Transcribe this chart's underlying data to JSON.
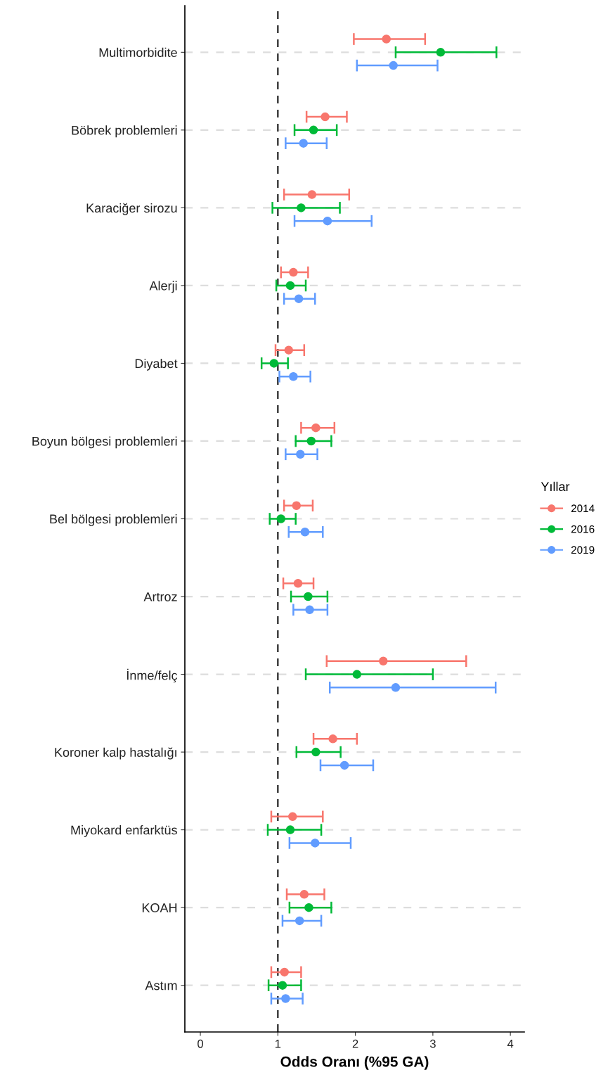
{
  "chart_data": {
    "type": "scatter",
    "orientation": "horizontal",
    "xlabel": "Odds Oranı (%95 GA)",
    "legend_title": "Yıllar",
    "legend": "right",
    "grid": "y",
    "marker": "circle",
    "categories": [
      "Multimorbidite",
      "Böbrek problemleri",
      "Karaciğer sirozu",
      "Alerji",
      "Diyabet",
      "Boyun bölgesi problemleri",
      "Bel bölgesi problemleri",
      "Artroz",
      "İnme/felç",
      "Koroner kalp hastalığı",
      "Miyokard enfarktüs",
      "KOAH",
      "Astım"
    ],
    "xlim": [
      -0.2,
      4.18
    ],
    "xticks": [
      0,
      1,
      2,
      3,
      4
    ],
    "ref_lines": [
      {
        "axis": "x",
        "value": 1,
        "color": "#222222",
        "line_style": "dashed"
      }
    ],
    "series": [
      {
        "name": "2014",
        "color": "#f8766d",
        "values": [
          2.4,
          1.61,
          1.44,
          1.2,
          1.14,
          1.49,
          1.24,
          1.26,
          2.36,
          1.71,
          1.19,
          1.34,
          1.085
        ],
        "errors": [
          [
            1.98,
            2.9
          ],
          [
            1.37,
            1.89
          ],
          [
            1.08,
            1.92
          ],
          [
            1.04,
            1.39
          ],
          [
            0.97,
            1.34
          ],
          [
            1.3,
            1.73
          ],
          [
            1.08,
            1.45
          ],
          [
            1.07,
            1.46
          ],
          [
            1.63,
            3.43
          ],
          [
            1.46,
            2.02
          ],
          [
            0.915,
            1.58
          ],
          [
            1.115,
            1.6
          ],
          [
            0.915,
            1.3
          ]
        ]
      },
      {
        "name": "2016",
        "color": "#00ba38",
        "values": [
          3.1,
          1.46,
          1.3,
          1.16,
          0.95,
          1.43,
          1.04,
          1.39,
          2.02,
          1.49,
          1.16,
          1.4,
          1.06
        ],
        "errors": [
          [
            2.52,
            3.82
          ],
          [
            1.215,
            1.76
          ],
          [
            0.93,
            1.8
          ],
          [
            0.98,
            1.36
          ],
          [
            0.79,
            1.13
          ],
          [
            1.23,
            1.69
          ],
          [
            0.895,
            1.23
          ],
          [
            1.17,
            1.64
          ],
          [
            1.36,
            3.0
          ],
          [
            1.24,
            1.81
          ],
          [
            0.87,
            1.56
          ],
          [
            1.15,
            1.69
          ],
          [
            0.88,
            1.3
          ]
        ]
      },
      {
        "name": "2019",
        "color": "#619cff",
        "values": [
          2.49,
          1.33,
          1.64,
          1.27,
          1.2,
          1.29,
          1.35,
          1.41,
          2.52,
          1.86,
          1.48,
          1.28,
          1.1
        ],
        "errors": [
          [
            2.02,
            3.06
          ],
          [
            1.1,
            1.63
          ],
          [
            1.215,
            2.21
          ],
          [
            1.08,
            1.48
          ],
          [
            1.02,
            1.42
          ],
          [
            1.1,
            1.51
          ],
          [
            1.14,
            1.58
          ],
          [
            1.2,
            1.64
          ],
          [
            1.67,
            3.81
          ],
          [
            1.55,
            2.23
          ],
          [
            1.15,
            1.94
          ],
          [
            1.06,
            1.56
          ],
          [
            0.915,
            1.32
          ]
        ]
      }
    ]
  }
}
